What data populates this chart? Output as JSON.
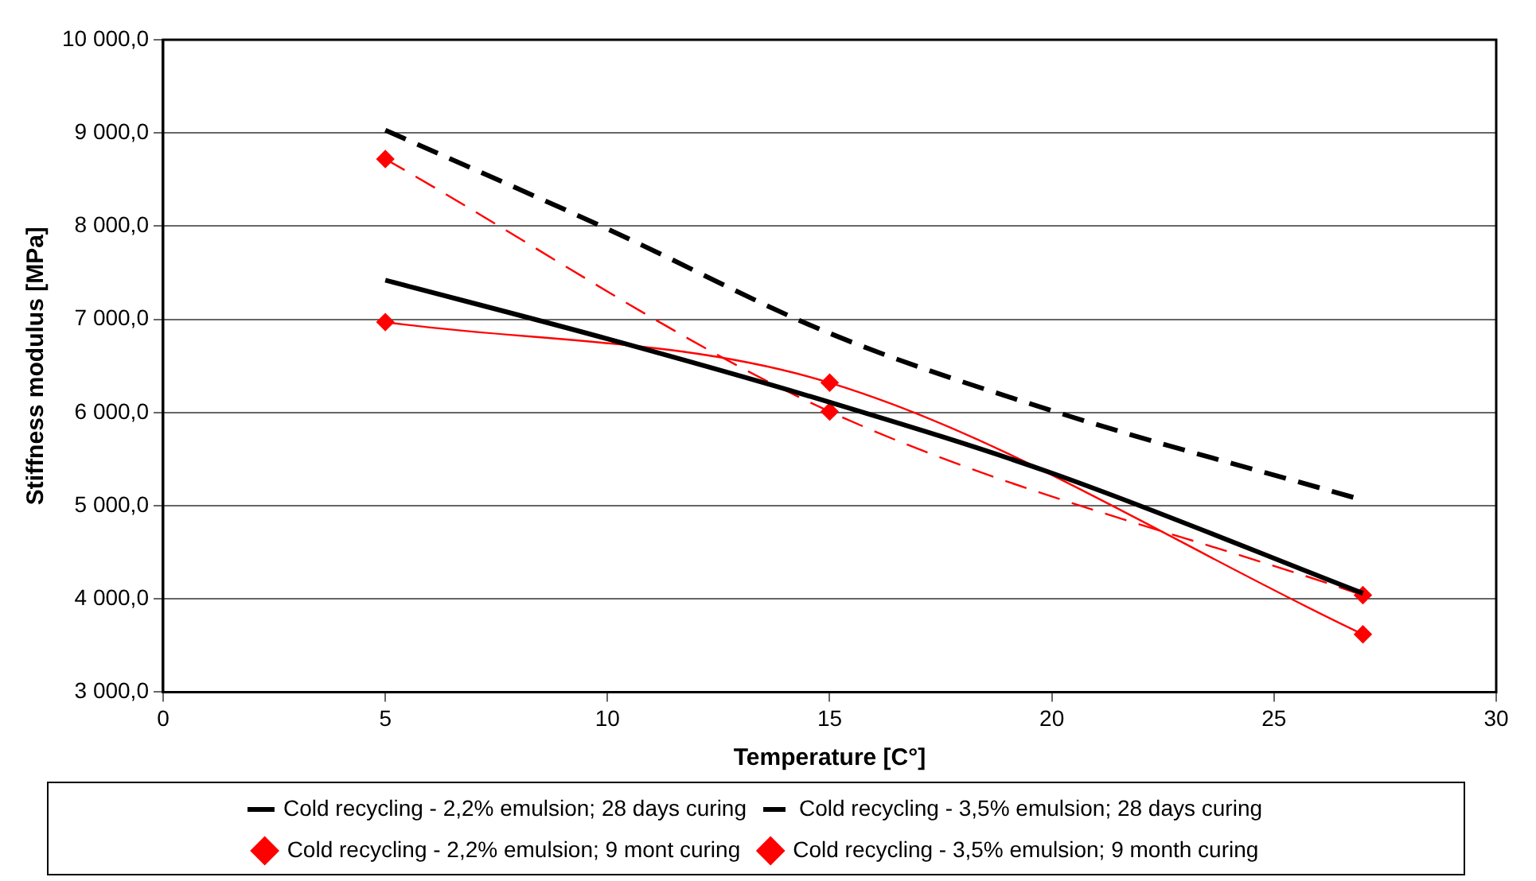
{
  "chart_data": {
    "type": "line",
    "xlabel": "Temperature [C°]",
    "ylabel": "Stiffness modulus [MPa]",
    "xlim": [
      0,
      30
    ],
    "xticks": [
      0,
      5,
      10,
      15,
      20,
      25,
      30
    ],
    "ylim": [
      3000,
      10000
    ],
    "yticks": [
      {
        "value": 3000,
        "label": "3 000,0"
      },
      {
        "value": 4000,
        "label": "4 000,0"
      },
      {
        "value": 5000,
        "label": "5 000,0"
      },
      {
        "value": 6000,
        "label": "6 000,0"
      },
      {
        "value": 7000,
        "label": "7 000,0"
      },
      {
        "value": 8000,
        "label": "8 000,0"
      },
      {
        "value": 9000,
        "label": "9 000,0"
      },
      {
        "value": 10000,
        "label": "10 000,0"
      }
    ],
    "grid": "y",
    "legend": "bottom",
    "series": [
      {
        "name": "Cold recycling - 2,2% emulsion; 28 days curing",
        "color": "#000000",
        "x": [
          5,
          10,
          15,
          20,
          27
        ],
        "values": [
          7420,
          6790,
          6110,
          5350,
          4060
        ],
        "marker": "none",
        "line_style": "solid"
      },
      {
        "name": "Cold recycling - 3,5% emulsion; 28 days curing",
        "color": "#000000",
        "x": [
          5,
          10,
          15,
          20,
          27
        ],
        "values": [
          9030,
          7970,
          6850,
          6020,
          5060
        ],
        "marker": "none",
        "line_style": "dashed"
      },
      {
        "name": "Cold recycling - 2,2% emulsion; 9 mont curing",
        "color": "#ff0000",
        "x": [
          5,
          15,
          27
        ],
        "values": [
          6970,
          6320,
          3620
        ],
        "marker": "diamond",
        "line_style": "solid"
      },
      {
        "name": "Cold recycling - 3,5% emulsion; 9 month curing",
        "color": "#ff0000",
        "x": [
          5,
          15,
          27
        ],
        "values": [
          8720,
          6010,
          4040
        ],
        "marker": "diamond",
        "line_style": "dashed"
      }
    ]
  }
}
